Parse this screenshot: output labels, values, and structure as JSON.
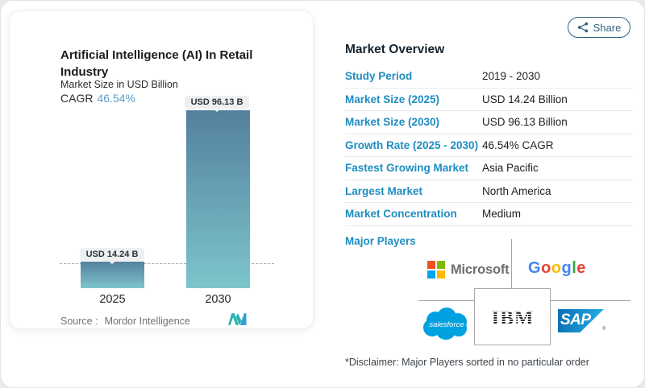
{
  "share": {
    "label": "Share"
  },
  "chart_card": {
    "title": "Artificial Intelligence (AI) In Retail Industry",
    "subtitle": "Market Size in USD Billion",
    "cagr_label": "CAGR",
    "cagr_value": "46.54%",
    "source_label": "Source :",
    "source_value": "Mordor Intelligence"
  },
  "chart_data": {
    "type": "bar",
    "categories": [
      "2025",
      "2030"
    ],
    "values": [
      14.24,
      96.13
    ],
    "bar_labels": [
      "USD 14.24 B",
      "USD 96.13 B"
    ],
    "title": "Artificial Intelligence (AI) In Retail Industry",
    "ylabel": "Market Size in USD Billion",
    "ylim": [
      0,
      100
    ],
    "reference_line_value": 14.24,
    "legend": "none",
    "grid": "off",
    "bar_gradient": [
      "#54809e",
      "#7dc5cb"
    ]
  },
  "overview": {
    "heading": "Market Overview",
    "rows": [
      {
        "label": "Study Period",
        "value": "2019 - 2030"
      },
      {
        "label": "Market Size (2025)",
        "value": "USD 14.24 Billion"
      },
      {
        "label": "Market Size (2030)",
        "value": "USD 96.13 Billion"
      },
      {
        "label": "Growth Rate (2025 - 2030)",
        "value": "46.54% CAGR"
      },
      {
        "label": "Fastest Growing Market",
        "value": "Asia Pacific"
      },
      {
        "label": "Largest Market",
        "value": "North America"
      },
      {
        "label": "Market Concentration",
        "value": "Medium"
      }
    ],
    "major_players_label": "Major Players",
    "disclaimer": "*Disclaimer: Major Players sorted in no particular order"
  },
  "players": {
    "microsoft_text": "Microsoft",
    "google_letters": [
      "G",
      "o",
      "o",
      "g",
      "l",
      "e"
    ],
    "salesforce_text": "salesforce",
    "ibm_text": "IBM",
    "sap_text": "SAP",
    "sap_reg": "®"
  },
  "colors": {
    "label_blue": "#1f8dc0",
    "heading_dark": "#16242f",
    "cagr_blue": "#5b9fca",
    "share_teal": "#33647f",
    "microsoft_squares": [
      "#F25022",
      "#7FBA00",
      "#00A4EF",
      "#FFB900"
    ],
    "microsoft_text_gray": "#706d6e",
    "google_letters": [
      "#4285F4",
      "#EA4335",
      "#FBBC05",
      "#4285F4",
      "#34A853",
      "#EA4335"
    ],
    "salesforce_blue": "#00A1E0",
    "sap_blue_gradient": [
      "#0c74b8",
      "#27aee6"
    ],
    "ibm_black": "#161616"
  }
}
